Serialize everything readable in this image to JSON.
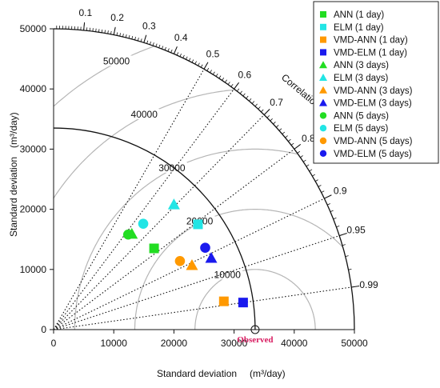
{
  "chart_data": {
    "type": "taylor",
    "xlabel": "Standard deviation",
    "xlabel_unit": "(m³/day)",
    "ylabel": "Standard deviation",
    "ylabel_unit": "(m³/day)",
    "correlation_title": "Correlation",
    "std_max": 50000,
    "std_ticks": [
      0,
      10000,
      20000,
      30000,
      40000,
      50000
    ],
    "std_tick_labels": [
      "0",
      "10000",
      "20000",
      "30000",
      "40000",
      "50000"
    ],
    "correlation_ticks": [
      0.1,
      0.2,
      0.3,
      0.4,
      0.5,
      0.6,
      0.7,
      0.8,
      0.9,
      0.95,
      0.99
    ],
    "correlation_labels": [
      "0.1",
      "0.2",
      "0.3",
      "0.4",
      "0.5",
      "0.6",
      "0.7",
      "0.8",
      "0.9",
      "0.95",
      "0.99"
    ],
    "rms_levels": [
      10000,
      20000,
      30000,
      40000,
      50000
    ],
    "rms_labels": [
      "10000",
      "20000",
      "30000",
      "40000",
      "50000"
    ],
    "observed": {
      "label": "Observed",
      "std": 33500,
      "color": "#d81b60"
    },
    "legend_position": "top-right",
    "series": [
      {
        "name": "ANN (1 day)",
        "marker": "square",
        "color": "#22dd22",
        "x": 16700,
        "y": 13500
      },
      {
        "name": "ELM (1 day)",
        "marker": "square",
        "color": "#22e5e5",
        "x": 24000,
        "y": 17500
      },
      {
        "name": "VMD-ANN (1 day)",
        "marker": "square",
        "color": "#ff9900",
        "x": 28300,
        "y": 4700
      },
      {
        "name": "VMD-ELM (1 day)",
        "marker": "square",
        "color": "#1a1aee",
        "x": 31500,
        "y": 4500
      },
      {
        "name": "ANN (3 days)",
        "marker": "triangle",
        "color": "#22dd22",
        "x": 13000,
        "y": 15900
      },
      {
        "name": "ELM (3 days)",
        "marker": "triangle",
        "color": "#22e5e5",
        "x": 20000,
        "y": 20800
      },
      {
        "name": "VMD-ANN (3 days)",
        "marker": "triangle",
        "color": "#ff9900",
        "x": 23000,
        "y": 10700
      },
      {
        "name": "VMD-ELM (3 days)",
        "marker": "triangle",
        "color": "#1a1aee",
        "x": 26200,
        "y": 11900
      },
      {
        "name": "ANN (5 days)",
        "marker": "circle",
        "color": "#22dd22",
        "x": 12400,
        "y": 15800
      },
      {
        "name": "ELM (5 days)",
        "marker": "circle",
        "color": "#22e5e5",
        "x": 14900,
        "y": 17600
      },
      {
        "name": "VMD-ANN (5 days)",
        "marker": "circle",
        "color": "#ff9900",
        "x": 21000,
        "y": 11400
      },
      {
        "name": "VMD-ELM (5 days)",
        "marker": "circle",
        "color": "#1a1aee",
        "x": 25200,
        "y": 13600
      }
    ]
  }
}
